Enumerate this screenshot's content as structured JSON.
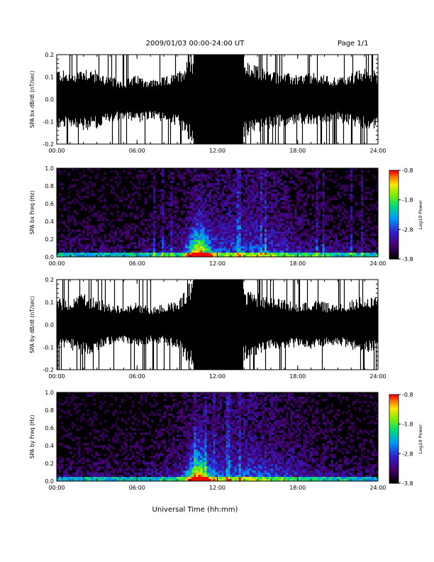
{
  "header": {
    "title": "2009/01/03  00:00-24:00 UT",
    "page": "Page 1/1"
  },
  "xlabel": "Universal Time (hh:mm)",
  "colorbar": {
    "label": "Log10 Power",
    "ticks": [
      "-0.8",
      "-1.8",
      "-2.8",
      "-3.8"
    ],
    "range": [
      -3.8,
      -0.8
    ]
  },
  "chart_data": [
    {
      "type": "line",
      "ylabel": "SPA bx dB/dt (nT/sec)",
      "x_ticks": [
        "00:00",
        "06:00",
        "12:00",
        "18:00",
        "24:00"
      ],
      "xlim_hours": [
        0,
        24
      ],
      "ylim": [
        -0.2,
        0.2
      ],
      "y_ticks": [
        "0.2",
        "0.1",
        "0.0",
        "-0.1",
        "-0.2"
      ],
      "envelope_hours": [
        0,
        1,
        2,
        3,
        4,
        5,
        6,
        7,
        8,
        9,
        10,
        11,
        12,
        13,
        14,
        15,
        16,
        17,
        18,
        19,
        20,
        21,
        22,
        23,
        24
      ],
      "envelope_amplitude": [
        0.14,
        0.12,
        0.15,
        0.13,
        0.1,
        0.09,
        0.11,
        0.09,
        0.1,
        0.12,
        0.2,
        0.2,
        0.2,
        0.2,
        0.17,
        0.15,
        0.13,
        0.12,
        0.11,
        0.12,
        0.11,
        0.1,
        0.12,
        0.14,
        0.13
      ]
    },
    {
      "type": "heatmap",
      "ylabel": "SPA bx Freq (Hz)",
      "x_ticks": [
        "00:00",
        "06:00",
        "12:00",
        "18:00",
        "24:00"
      ],
      "xlim_hours": [
        0,
        24
      ],
      "ylim": [
        0.0,
        1.0
      ],
      "y_ticks": [
        "1.0",
        "0.8",
        "0.6",
        "0.4",
        "0.2",
        "0.0"
      ],
      "peak_time_hours": 10.6,
      "max_log_power": -0.8
    },
    {
      "type": "line",
      "ylabel": "SPA by dB/dt (nT/sec)",
      "x_ticks": [
        "00:00",
        "06:00",
        "12:00",
        "18:00",
        "24:00"
      ],
      "xlim_hours": [
        0,
        24
      ],
      "ylim": [
        -0.2,
        0.2
      ],
      "y_ticks": [
        "0.2",
        "0.1",
        "0.0",
        "-0.1",
        "-0.2"
      ],
      "envelope_hours": [
        0,
        1,
        2,
        3,
        4,
        5,
        6,
        7,
        8,
        9,
        10,
        11,
        12,
        13,
        14,
        15,
        16,
        17,
        18,
        19,
        20,
        21,
        22,
        23,
        24
      ],
      "envelope_amplitude": [
        0.12,
        0.11,
        0.14,
        0.12,
        0.09,
        0.08,
        0.1,
        0.08,
        0.09,
        0.11,
        0.2,
        0.2,
        0.2,
        0.2,
        0.16,
        0.14,
        0.12,
        0.11,
        0.1,
        0.11,
        0.1,
        0.09,
        0.11,
        0.13,
        0.12
      ]
    },
    {
      "type": "heatmap",
      "ylabel": "SPA by Freq (Hz)",
      "x_ticks": [
        "00:00",
        "06:00",
        "12:00",
        "18:00",
        "24:00"
      ],
      "xlim_hours": [
        0,
        24
      ],
      "ylim": [
        0.0,
        1.0
      ],
      "y_ticks": [
        "1.0",
        "0.8",
        "0.6",
        "0.4",
        "0.2",
        "0.0"
      ],
      "peak_time_hours": 10.6,
      "max_log_power": -0.8
    }
  ]
}
